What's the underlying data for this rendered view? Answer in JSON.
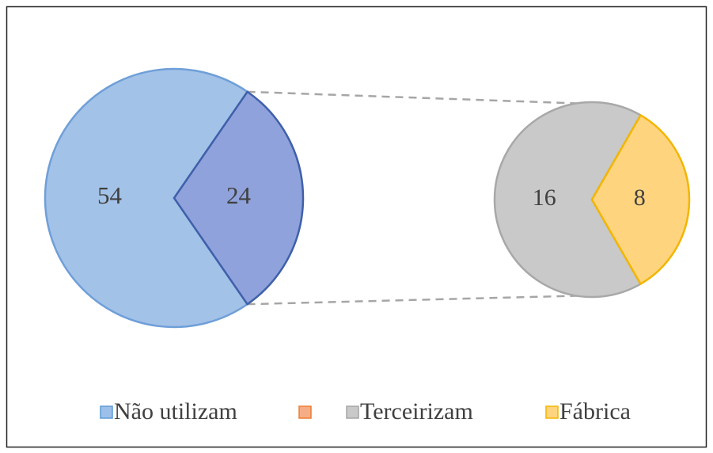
{
  "chart_data": {
    "type": "pie-of-pie",
    "main": {
      "categories": [
        "Não utilizam",
        null
      ],
      "values": [
        54,
        24
      ],
      "colors": [
        "#a3c2e8",
        "#8fa2db"
      ],
      "strokes": [
        "#6f9fd8",
        "#3f60aa"
      ]
    },
    "secondary": {
      "categories": [
        "Terceirizam",
        "Fábrica"
      ],
      "values": [
        16,
        8
      ],
      "colors": [
        "#c9c9c9",
        "#ffd47f"
      ],
      "strokes": [
        "#a8a8a8",
        "#f2b600"
      ]
    },
    "legend": [
      {
        "name": "Não utilizam",
        "color": "#9dc0ea",
        "stroke": "#5b9bd5"
      },
      {
        "name": null,
        "color": "#f6ad86",
        "stroke": "#ed7d31"
      },
      {
        "name": "Terceirizam",
        "color": "#c9c9c9",
        "stroke": "#a5a5a5"
      },
      {
        "name": "Fábrica",
        "color": "#ffd47f",
        "stroke": "#f2b600"
      }
    ]
  }
}
